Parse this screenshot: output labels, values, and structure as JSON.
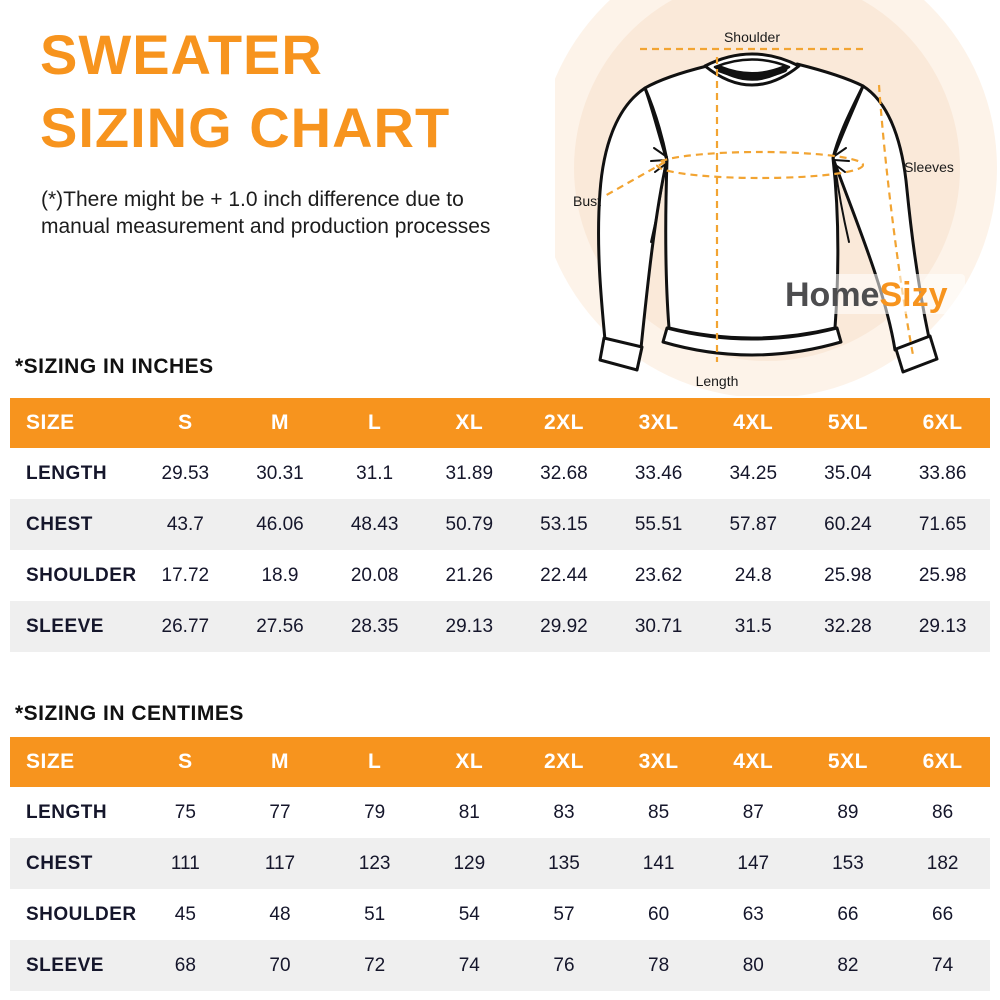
{
  "header": {
    "title_line1": "SWEATER",
    "title_line2": "SIZING CHART",
    "disclaimer_line1": "(*)There might be + 1.0 inch difference due to",
    "disclaimer_line2": "manual measurement and production processes"
  },
  "diagram": {
    "labels": {
      "shoulder": "Shoulder",
      "sleeves": "Sleeves",
      "bust": "Bust",
      "length": "Length"
    },
    "logo": {
      "part1": "Home",
      "part2": "Sizy"
    }
  },
  "colors": {
    "brand_orange": "#F7941E",
    "dash_orange": "#F2A432",
    "circle_outer": "#FDF3E9",
    "circle_inner": "#FAE9D9",
    "row_stripe": "#EFEFEF",
    "logo_gray": "#4D4D4F"
  },
  "tables": [
    {
      "id": "inches",
      "heading": "*SIZING IN INCHES",
      "columns": [
        "SIZE",
        "S",
        "M",
        "L",
        "XL",
        "2XL",
        "3XL",
        "4XL",
        "5XL",
        "6XL"
      ],
      "rows": [
        {
          "label": "LENGTH",
          "values": [
            "29.53",
            "30.31",
            "31.1",
            "31.89",
            "32.68",
            "33.46",
            "34.25",
            "35.04",
            "33.86"
          ]
        },
        {
          "label": "CHEST",
          "values": [
            "43.7",
            "46.06",
            "48.43",
            "50.79",
            "53.15",
            "55.51",
            "57.87",
            "60.24",
            "71.65"
          ]
        },
        {
          "label": "SHOULDER",
          "values": [
            "17.72",
            "18.9",
            "20.08",
            "21.26",
            "22.44",
            "23.62",
            "24.8",
            "25.98",
            "25.98"
          ]
        },
        {
          "label": "SLEEVE",
          "values": [
            "26.77",
            "27.56",
            "28.35",
            "29.13",
            "29.92",
            "30.71",
            "31.5",
            "32.28",
            "29.13"
          ]
        }
      ]
    },
    {
      "id": "centimes",
      "heading": "*SIZING IN CENTIMES",
      "columns": [
        "SIZE",
        "S",
        "M",
        "L",
        "XL",
        "2XL",
        "3XL",
        "4XL",
        "5XL",
        "6XL"
      ],
      "rows": [
        {
          "label": "LENGTH",
          "values": [
            "75",
            "77",
            "79",
            "81",
            "83",
            "85",
            "87",
            "89",
            "86"
          ]
        },
        {
          "label": "CHEST",
          "values": [
            "111",
            "117",
            "123",
            "129",
            "135",
            "141",
            "147",
            "153",
            "182"
          ]
        },
        {
          "label": "SHOULDER",
          "values": [
            "45",
            "48",
            "51",
            "54",
            "57",
            "60",
            "63",
            "66",
            "66"
          ]
        },
        {
          "label": "SLEEVE",
          "values": [
            "68",
            "70",
            "72",
            "74",
            "76",
            "78",
            "80",
            "82",
            "74"
          ]
        }
      ]
    }
  ]
}
